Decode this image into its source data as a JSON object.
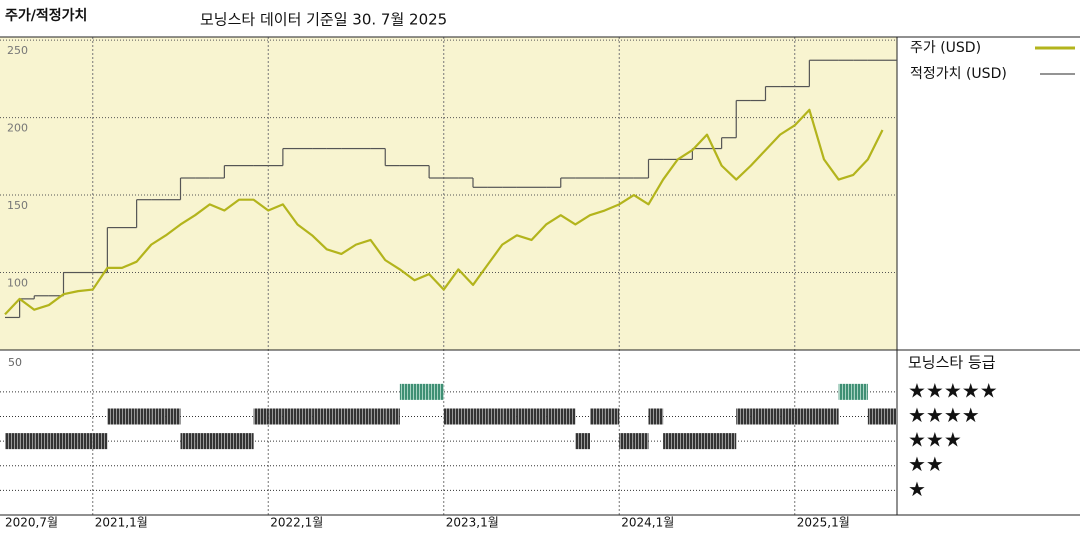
{
  "chart_data": [
    {
      "type": "price-fair-value",
      "title": "주가/적정가치",
      "subtitle": "모닝스타 데이터 기준일 30. 7월 2025",
      "x": [
        "2020-07",
        "2020-08",
        "2020-09",
        "2020-10",
        "2020-11",
        "2020-12",
        "2021-01",
        "2021-02",
        "2021-03",
        "2021-04",
        "2021-05",
        "2021-06",
        "2021-07",
        "2021-08",
        "2021-09",
        "2021-10",
        "2021-11",
        "2021-12",
        "2022-01",
        "2022-02",
        "2022-03",
        "2022-04",
        "2022-05",
        "2022-06",
        "2022-07",
        "2022-08",
        "2022-09",
        "2022-10",
        "2022-11",
        "2022-12",
        "2023-01",
        "2023-02",
        "2023-03",
        "2023-04",
        "2023-05",
        "2023-06",
        "2023-07",
        "2023-08",
        "2023-09",
        "2023-10",
        "2023-11",
        "2023-12",
        "2024-01",
        "2024-02",
        "2024-03",
        "2024-04",
        "2024-05",
        "2024-06",
        "2024-07",
        "2024-08",
        "2024-09",
        "2024-10",
        "2024-11",
        "2024-12",
        "2025-01",
        "2025-02",
        "2025-03",
        "2025-04",
        "2025-05",
        "2025-06",
        "2025-07"
      ],
      "xticks": [
        {
          "value": "2020-07",
          "label": "2020,7월"
        },
        {
          "value": "2021-01",
          "label": "2021,1월"
        },
        {
          "value": "2022-01",
          "label": "2022,1월"
        },
        {
          "value": "2023-01",
          "label": "2023,1월"
        },
        {
          "value": "2024-01",
          "label": "2024,1월"
        },
        {
          "value": "2025-01",
          "label": "2025,1월"
        }
      ],
      "ylim": [
        50,
        252
      ],
      "yticks": [
        100,
        150,
        200,
        250
      ],
      "grid": true,
      "series": [
        {
          "name": "주가 (USD)",
          "color": "#b3b41c",
          "style": "line",
          "values": [
            73,
            83,
            76,
            79,
            86,
            88,
            89,
            103,
            103,
            107,
            118,
            124,
            131,
            137,
            144,
            140,
            147,
            147,
            140,
            144,
            131,
            124,
            115,
            112,
            118,
            121,
            108,
            102,
            95,
            99,
            89,
            102,
            92,
            105,
            118,
            124,
            121,
            131,
            137,
            131,
            137,
            140,
            144,
            150,
            144,
            160,
            173,
            179,
            189,
            169,
            160,
            169,
            179,
            189,
            195,
            205,
            173,
            160,
            163,
            173,
            192
          ]
        },
        {
          "name": "적정가치 (USD)",
          "color": "#555555",
          "style": "step",
          "values": [
            71,
            83,
            85,
            85,
            100,
            100,
            100,
            129,
            129,
            147,
            147,
            147,
            161,
            161,
            161,
            169,
            169,
            169,
            169,
            180,
            180,
            180,
            180,
            180,
            180,
            180,
            169,
            169,
            169,
            161,
            161,
            161,
            155,
            155,
            155,
            155,
            155,
            155,
            161,
            161,
            161,
            161,
            161,
            161,
            173,
            173,
            173,
            180,
            180,
            187,
            211,
            211,
            220,
            220,
            220,
            237,
            237,
            237,
            237,
            237,
            237
          ]
        }
      ]
    },
    {
      "type": "rating",
      "title": "모닝스타 등급",
      "corner_label": "50",
      "ylim": [
        0,
        6.7
      ],
      "yticks": [
        {
          "value": 5,
          "label": "★★★★★"
        },
        {
          "value": 4,
          "label": "★★★★"
        },
        {
          "value": 3,
          "label": "★★★"
        },
        {
          "value": 2,
          "label": "★★"
        },
        {
          "value": 1,
          "label": "★"
        }
      ],
      "colors": {
        "5": "#3f8f74",
        "other": "#333333"
      },
      "values": [
        3,
        3,
        3,
        3,
        3,
        3,
        3,
        4,
        4,
        4,
        4,
        4,
        3,
        3,
        3,
        3,
        3,
        4,
        4,
        4,
        4,
        4,
        4,
        4,
        4,
        4,
        4,
        5,
        5,
        5,
        4,
        4,
        4,
        4,
        4,
        4,
        4,
        4,
        4,
        3,
        4,
        4,
        3,
        3,
        4,
        3,
        3,
        3,
        3,
        3,
        4,
        4,
        4,
        4,
        4,
        4,
        4,
        5,
        5,
        4,
        4
      ]
    }
  ]
}
